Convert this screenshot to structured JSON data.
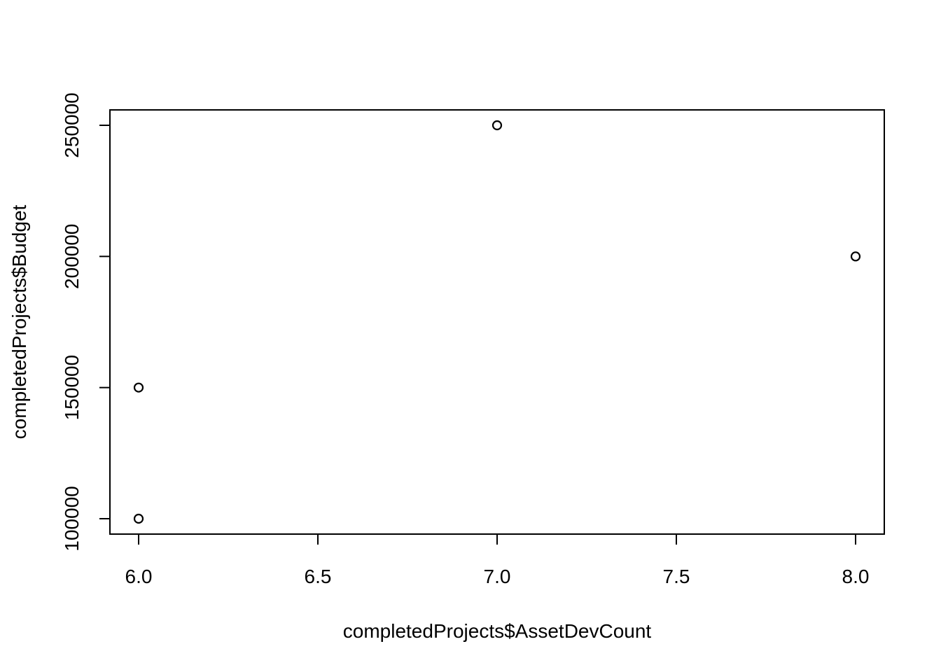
{
  "chart_data": {
    "type": "scatter",
    "title": "",
    "xlabel": "completedProjects$AssetDevCount",
    "ylabel": "completedProjects$Budget",
    "points": [
      {
        "x": 6,
        "y": 100000
      },
      {
        "x": 6,
        "y": 150000
      },
      {
        "x": 7,
        "y": 250000
      },
      {
        "x": 8,
        "y": 200000
      }
    ],
    "xlim": [
      6,
      8
    ],
    "ylim": [
      100000,
      250000
    ],
    "x_ticks": [
      6.0,
      6.5,
      7.0,
      7.5,
      8.0
    ],
    "x_tick_labels": [
      "6.0",
      "6.5",
      "7.0",
      "7.5",
      "8.0"
    ],
    "y_ticks": [
      100000,
      150000,
      200000,
      250000
    ],
    "y_tick_labels": [
      "100000",
      "150000",
      "200000",
      "250000"
    ],
    "marker": "open-circle",
    "grid": false,
    "legend": "none",
    "colors": {
      "marker": "#000000",
      "axis": "#000000",
      "background": "#ffffff"
    }
  }
}
